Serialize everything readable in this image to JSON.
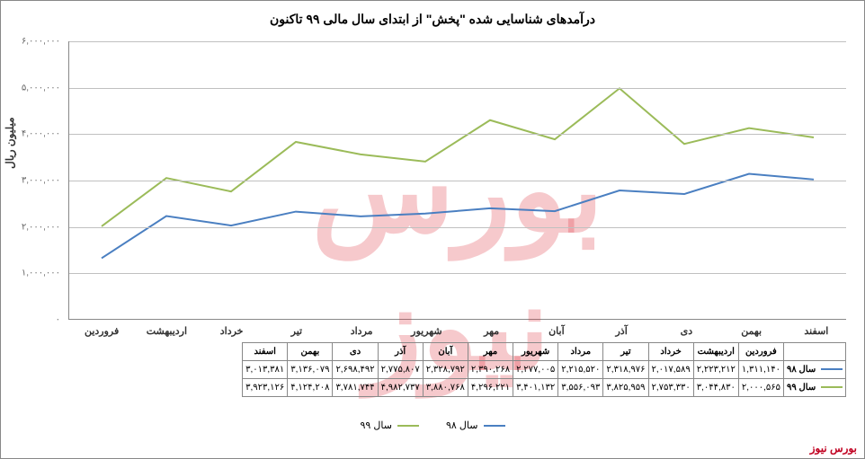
{
  "title": "درآمدهای شناسایی شده \"پخش\" از ابتدای سال مالی ۹۹ تاکنون",
  "ylabel": "میلیون ریال",
  "footer": "بورس نیوز",
  "watermark": "بورس نیوز",
  "chart": {
    "type": "line",
    "ylim": [
      0,
      6000000
    ],
    "ytick_step": 1000000,
    "yticks": [
      "۰",
      "۱,۰۰۰,۰۰۰",
      "۲,۰۰۰,۰۰۰",
      "۳,۰۰۰,۰۰۰",
      "۴,۰۰۰,۰۰۰",
      "۵,۰۰۰,۰۰۰",
      "۶,۰۰۰,۰۰۰"
    ],
    "categories": [
      "فروردین",
      "اردیبهشت",
      "خرداد",
      "تیر",
      "مرداد",
      "شهریور",
      "مهر",
      "آبان",
      "آذر",
      "دی",
      "بهمن",
      "اسفند"
    ],
    "series": [
      {
        "name": "سال ۹۸",
        "color": "#4a7fc1",
        "line_width": 2,
        "values": [
          1311140,
          2223212,
          2017589,
          2318976,
          2215520,
          2277005,
          2390268,
          2328792,
          2775807,
          2698492,
          3136079,
          3013381
        ],
        "display": [
          "۱,۳۱۱,۱۴۰",
          "۲,۲۲۳,۲۱۲",
          "۲,۰۱۷,۵۸۹",
          "۲,۳۱۸,۹۷۶",
          "۲,۲۱۵,۵۲۰",
          "۲,۲۷۷,۰۰۵",
          "۲,۳۹۰,۲۶۸",
          "۲,۳۲۸,۷۹۲",
          "۲,۷۷۵,۸۰۷",
          "۲,۶۹۸,۴۹۲",
          "۳,۱۳۶,۰۷۹",
          "۳,۰۱۳,۳۸۱"
        ]
      },
      {
        "name": "سال ۹۹",
        "color": "#9bbb59",
        "line_width": 2,
        "values": [
          2000565,
          3044830,
          2753330,
          3825959,
          3556093,
          3401132,
          4296221,
          3880768,
          4982737,
          3781744,
          4124208,
          3923126
        ],
        "display": [
          "۲,۰۰۰,۵۶۵",
          "۳,۰۴۴,۸۳۰",
          "۲,۷۵۳,۳۳۰",
          "۳,۸۲۵,۹۵۹",
          "۳,۵۵۶,۰۹۳",
          "۳,۴۰۱,۱۳۲",
          "۴,۲۹۶,۲۲۱",
          "۳,۸۸۰,۷۶۸",
          "۴,۹۸۲,۷۳۷",
          "۳,۷۸۱,۷۴۴",
          "۴,۱۲۴,۲۰۸",
          "۳,۹۲۳,۱۲۶"
        ]
      }
    ],
    "grid_color": "#c0c0c0",
    "background_color": "#ffffff"
  }
}
